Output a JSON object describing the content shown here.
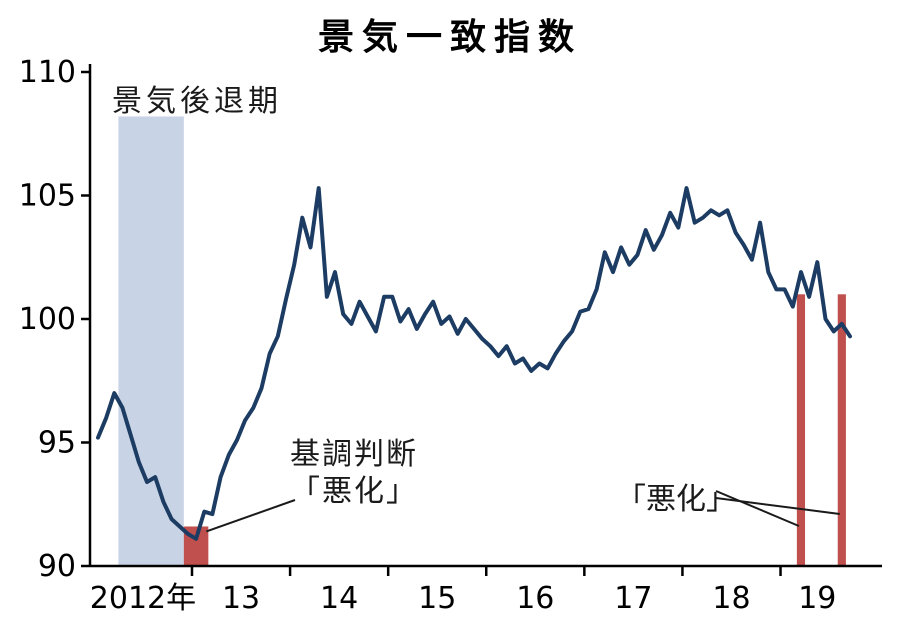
{
  "chart_data": {
    "type": "line",
    "title": "景気一致指数",
    "ylim": [
      90,
      110
    ],
    "y_tick_labels": [
      "90",
      "95",
      "100",
      "105",
      "110"
    ],
    "x_tick_labels": [
      "2012年",
      "13",
      "14",
      "15",
      "16",
      "17",
      "18",
      "19"
    ],
    "x_start_month": "2012-01",
    "x_end_month": "2019-09",
    "grid": false,
    "legend": "none",
    "series": [
      {
        "name": "景気一致指数",
        "color": "#1c3c63",
        "start": "2012-01",
        "values": [
          95.2,
          96.0,
          97.0,
          96.4,
          95.3,
          94.2,
          93.4,
          93.6,
          92.6,
          91.9,
          91.6,
          91.3,
          91.1,
          92.2,
          92.1,
          93.6,
          94.5,
          95.1,
          95.9,
          96.4,
          97.2,
          98.6,
          99.3,
          100.8,
          102.2,
          104.1,
          102.9,
          105.3,
          100.9,
          101.9,
          100.2,
          99.8,
          100.7,
          100.1,
          99.5,
          100.9,
          100.9,
          99.9,
          100.4,
          99.6,
          100.2,
          100.7,
          99.8,
          100.1,
          99.4,
          100.0,
          99.6,
          99.2,
          98.9,
          98.5,
          98.9,
          98.2,
          98.4,
          97.9,
          98.2,
          98.0,
          98.6,
          99.1,
          99.5,
          100.3,
          100.4,
          101.2,
          102.7,
          101.9,
          102.9,
          102.2,
          102.6,
          103.6,
          102.8,
          103.4,
          104.3,
          103.7,
          105.3,
          103.9,
          104.1,
          104.4,
          104.2,
          104.4,
          103.5,
          103.0,
          102.4,
          103.9,
          101.9,
          101.2,
          101.2,
          100.5,
          101.9,
          100.9,
          102.3,
          100.0,
          99.5,
          99.8,
          99.3
        ]
      }
    ],
    "bands": [
      {
        "id": "recession",
        "kind": "recession",
        "label": "景気後退期",
        "from": "2012-04",
        "to": "2012-11",
        "top_value": 108.2,
        "color": "#c8d3e6"
      },
      {
        "id": "worsening-2013",
        "kind": "worsening",
        "label": "基調判断「悪化」",
        "from": "2012-12",
        "to": "2013-02",
        "top_value": 91.6,
        "color": "#c0504d"
      },
      {
        "id": "worsening-2019a",
        "kind": "worsening",
        "label": "「悪化」",
        "from": "2019-03",
        "to": "2019-03",
        "top_value": 101.0,
        "color": "#c0504d"
      },
      {
        "id": "worsening-2019b",
        "kind": "worsening",
        "label": "「悪化」",
        "from": "2019-08",
        "to": "2019-08",
        "top_value": 101.0,
        "color": "#c0504d"
      }
    ],
    "annotations": {
      "recession_label": "景気後退期",
      "judgment_line1": "基調判断",
      "judgment_line2": "「悪化」",
      "worsening_label": "「悪化」"
    },
    "colors": {
      "line": "#1c3c63",
      "recession_band": "#c8d3e6",
      "worsening_band": "#c0504d",
      "axis": "#000000",
      "text": "#1a1a1a"
    }
  }
}
